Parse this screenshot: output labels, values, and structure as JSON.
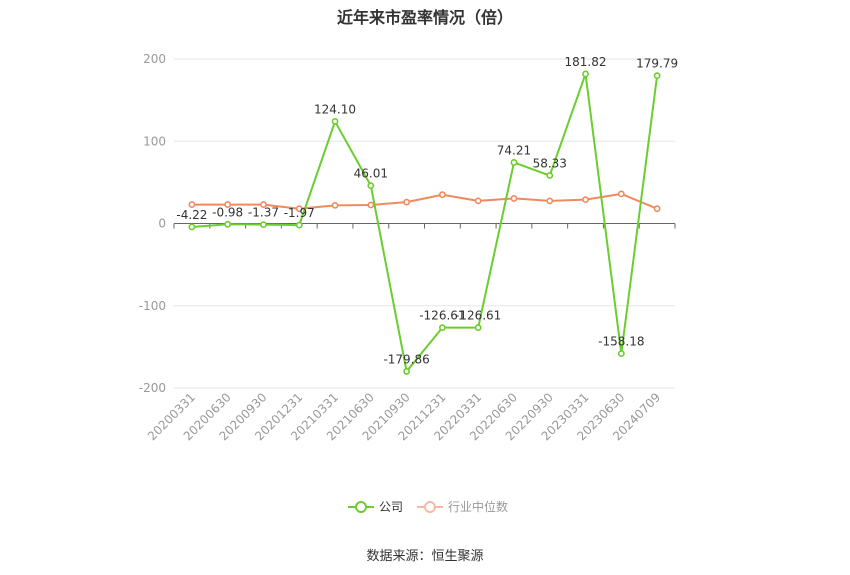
{
  "title": "近年来市盈率情况（倍）",
  "source_note": "数据来源：恒生聚源",
  "colors": {
    "company": "#6ccd2f",
    "industry": "#f08a5d"
  },
  "legend": [
    {
      "label": "公司",
      "series": "company",
      "active": true
    },
    {
      "label": "行业中位数",
      "series": "industry",
      "active": false
    }
  ],
  "chart_data": {
    "type": "line",
    "title": "近年来市盈率情况（倍）",
    "xlabel": "",
    "ylabel": "",
    "ylim": [
      -200,
      200
    ],
    "yticks": [
      200,
      100,
      0,
      -100,
      -200
    ],
    "categories": [
      "20200331",
      "20200630",
      "20200930",
      "20201231",
      "20210331",
      "20210630",
      "20210930",
      "20211231",
      "20220331",
      "20220630",
      "20220930",
      "20230331",
      "20230630",
      "20240709"
    ],
    "grid": true,
    "legend_position": "bottom",
    "series": [
      {
        "name": "公司",
        "key": "company",
        "values": [
          -4.22,
          -0.98,
          -1.37,
          -1.97,
          124.1,
          46.01,
          -179.86,
          -126.61,
          -126.61,
          74.21,
          58.33,
          181.82,
          -158.18,
          179.79
        ],
        "labels": [
          "-4.22",
          "-0.98",
          "-1.37",
          "-1.97",
          "124.10",
          "46.01",
          "-179.86",
          "-126.61",
          "-126.61",
          "74.21",
          "58.33",
          "181.82",
          "-158.18",
          "179.79"
        ]
      },
      {
        "name": "行业中位数",
        "key": "industry",
        "values": [
          23,
          23,
          23,
          18,
          22,
          22.5,
          26,
          35,
          27.5,
          30.5,
          27.5,
          29,
          36,
          18
        ]
      }
    ]
  }
}
